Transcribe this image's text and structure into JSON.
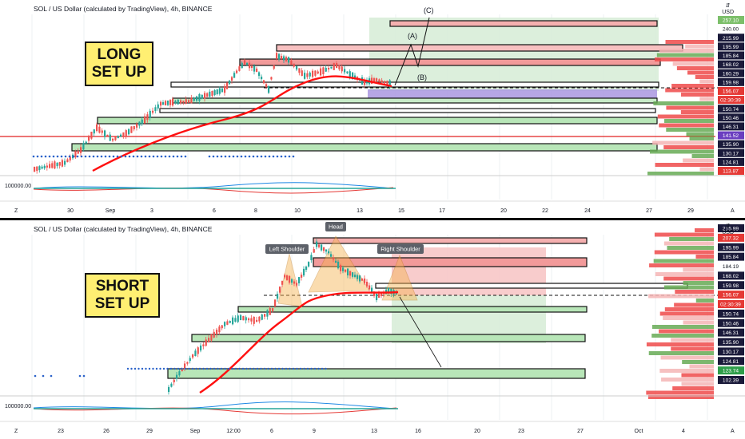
{
  "colors": {
    "up": "#26a69a",
    "down": "#ef5350",
    "ema": "#ff1010",
    "zone": "#b8e6b8",
    "zoneBorder": "#111111",
    "red": "#f28b8b",
    "label": "#ffef72"
  },
  "chart_data": [
    {
      "type": "candlestick",
      "title": "SOL / US Dollar (calculated by TradingView), 4h, BINANCE",
      "setup_label": "LONG\nSET UP",
      "currency": "USD",
      "indicator_label": "100000.00",
      "x_ticks": [
        "30",
        "Sep",
        "3",
        "6",
        "8",
        "10",
        "13",
        "15",
        "17",
        "20",
        "22",
        "24",
        "27",
        "29"
      ],
      "axis_tags": [
        {
          "value": "257.10",
          "bg": "#7cbf6a"
        },
        {
          "value": "240.00",
          "bg": "none"
        },
        {
          "value": "215.99",
          "bg": "#1a1a3a"
        },
        {
          "value": "195.99",
          "bg": "#1a1a3a"
        },
        {
          "value": "185.84",
          "bg": "#1a1a3a"
        },
        {
          "value": "168.02",
          "bg": "#1a1a3a"
        },
        {
          "value": "160.29",
          "bg": "#1a1a3a"
        },
        {
          "value": "159.98",
          "bg": "#1a1a3a"
        },
        {
          "value": "156.07",
          "bg": "#e53935"
        },
        {
          "value": "02:30:39",
          "bg": "#e53935"
        },
        {
          "value": "150.74",
          "bg": "#1a1a3a"
        },
        {
          "value": "150.46",
          "bg": "#1a1a3a"
        },
        {
          "value": "146.31",
          "bg": "#1a1a3a"
        },
        {
          "value": "141.52",
          "bg": "#6a3ec0"
        },
        {
          "value": "135.90",
          "bg": "#1a1a3a"
        },
        {
          "value": "130.17",
          "bg": "#1a1a3a"
        },
        {
          "value": "124.81",
          "bg": "#1a1a3a"
        },
        {
          "value": "113.87",
          "bg": "#e53935"
        }
      ],
      "wave_labels": [
        "(A)",
        "(B)",
        "(C)"
      ]
    },
    {
      "type": "candlestick",
      "title": "SOL / US Dollar (calculated by TradingView), 4h, BINANCE",
      "setup_label": "SHORT\nSET UP",
      "currency": "USD",
      "indicator_label": "100000.00",
      "x_ticks": [
        "23",
        "26",
        "29",
        "Sep",
        "12:00",
        "6",
        "9",
        "13",
        "16",
        "20",
        "23",
        "27",
        "Oct",
        "4"
      ],
      "axis_tags": [
        {
          "value": "215.99",
          "bg": "#1a1a3a"
        },
        {
          "value": "207.32",
          "bg": "#e53935"
        },
        {
          "value": "195.99",
          "bg": "#1a1a3a"
        },
        {
          "value": "185.84",
          "bg": "#1a1a3a"
        },
        {
          "value": "184.19",
          "bg": "none"
        },
        {
          "value": "168.02",
          "bg": "#1a1a3a"
        },
        {
          "value": "159.98",
          "bg": "#1a1a3a"
        },
        {
          "value": "156.07",
          "bg": "#e53935"
        },
        {
          "value": "02:30:39",
          "bg": "#e53935"
        },
        {
          "value": "150.74",
          "bg": "#1a1a3a"
        },
        {
          "value": "150.46",
          "bg": "#1a1a3a"
        },
        {
          "value": "146.31",
          "bg": "#1a1a3a"
        },
        {
          "value": "135.90",
          "bg": "#1a1a3a"
        },
        {
          "value": "130.17",
          "bg": "#1a1a3a"
        },
        {
          "value": "124.81",
          "bg": "#1a1a3a"
        },
        {
          "value": "123.74",
          "bg": "#2e9e4a"
        },
        {
          "value": "102.39",
          "bg": "#1a1a3a"
        }
      ],
      "pattern_labels": [
        "Left Shoulder",
        "Head",
        "Right Shoulder"
      ]
    }
  ]
}
